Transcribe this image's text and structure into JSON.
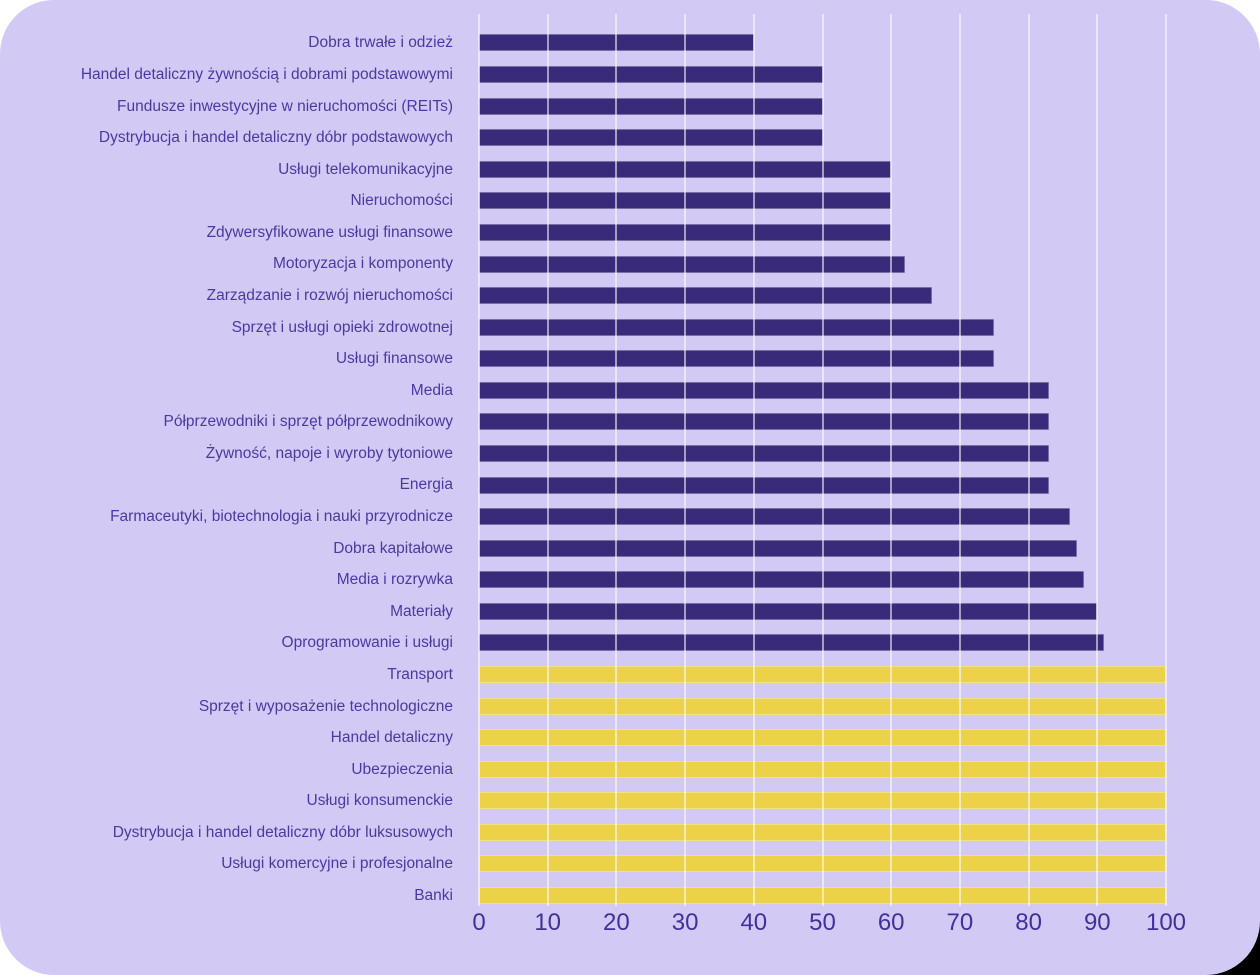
{
  "chart_data": {
    "type": "bar",
    "orientation": "horizontal",
    "title": "",
    "xlabel": "",
    "ylabel": "",
    "xlim": [
      0,
      100
    ],
    "x_ticks": [
      0,
      10,
      20,
      30,
      40,
      50,
      60,
      70,
      80,
      90,
      100
    ],
    "grid": "vertical",
    "legend": "none",
    "bars": [
      {
        "label": "Dobra trwałe i odzież",
        "value": 40,
        "series": "purple"
      },
      {
        "label": "Handel detaliczny żywnością i dobrami podstawowymi",
        "value": 50,
        "series": "purple"
      },
      {
        "label": "Fundusze inwestycyjne w nieruchomości (REITs)",
        "value": 50,
        "series": "purple"
      },
      {
        "label": "Dystrybucja i handel detaliczny dóbr podstawowych",
        "value": 50,
        "series": "purple"
      },
      {
        "label": "Usługi telekomunikacyjne",
        "value": 60,
        "series": "purple"
      },
      {
        "label": "Nieruchomości",
        "value": 60,
        "series": "purple"
      },
      {
        "label": "Zdywersyfikowane usługi finansowe",
        "value": 60,
        "series": "purple"
      },
      {
        "label": "Motoryzacja i komponenty",
        "value": 62,
        "series": "purple"
      },
      {
        "label": "Zarządzanie i rozwój nieruchomości",
        "value": 66,
        "series": "purple"
      },
      {
        "label": "Sprzęt i usługi opieki zdrowotnej",
        "value": 75,
        "series": "purple"
      },
      {
        "label": "Usługi finansowe",
        "value": 75,
        "series": "purple"
      },
      {
        "label": "Media",
        "value": 83,
        "series": "purple"
      },
      {
        "label": "Półprzewodniki i sprzęt półprzewodnikowy",
        "value": 83,
        "series": "purple"
      },
      {
        "label": "Żywność, napoje i wyroby tytoniowe",
        "value": 83,
        "series": "purple"
      },
      {
        "label": "Energia",
        "value": 83,
        "series": "purple"
      },
      {
        "label": "Farmaceutyki, biotechnologia i nauki przyrodnicze",
        "value": 86,
        "series": "purple"
      },
      {
        "label": "Dobra kapitałowe",
        "value": 87,
        "series": "purple"
      },
      {
        "label": "Media i rozrywka",
        "value": 88,
        "series": "purple"
      },
      {
        "label": "Materiały",
        "value": 90,
        "series": "purple"
      },
      {
        "label": "Oprogramowanie i usługi",
        "value": 91,
        "series": "purple"
      },
      {
        "label": "Transport",
        "value": 100,
        "series": "yellow"
      },
      {
        "label": "Sprzęt i wyposażenie technologiczne",
        "value": 100,
        "series": "yellow"
      },
      {
        "label": "Handel detaliczny",
        "value": 100,
        "series": "yellow"
      },
      {
        "label": "Ubezpieczenia",
        "value": 100,
        "series": "yellow"
      },
      {
        "label": "Usługi konsumenckie",
        "value": 100,
        "series": "yellow"
      },
      {
        "label": "Dystrybucja i handel detaliczny dóbr luksusowych",
        "value": 100,
        "series": "yellow"
      },
      {
        "label": "Usługi komercyjne i profesjonalne",
        "value": 100,
        "series": "yellow"
      },
      {
        "label": "Banki",
        "value": 100,
        "series": "yellow"
      }
    ],
    "series_colors": {
      "purple": "#392b79",
      "yellow": "#ecd248"
    }
  },
  "colors": {
    "card_background": "#d3c9f5",
    "label_text": "#4a39a2",
    "axis_text": "#41309b",
    "gridline": "rgba(255,255,255,0.55)",
    "page_corner": "#000000"
  }
}
